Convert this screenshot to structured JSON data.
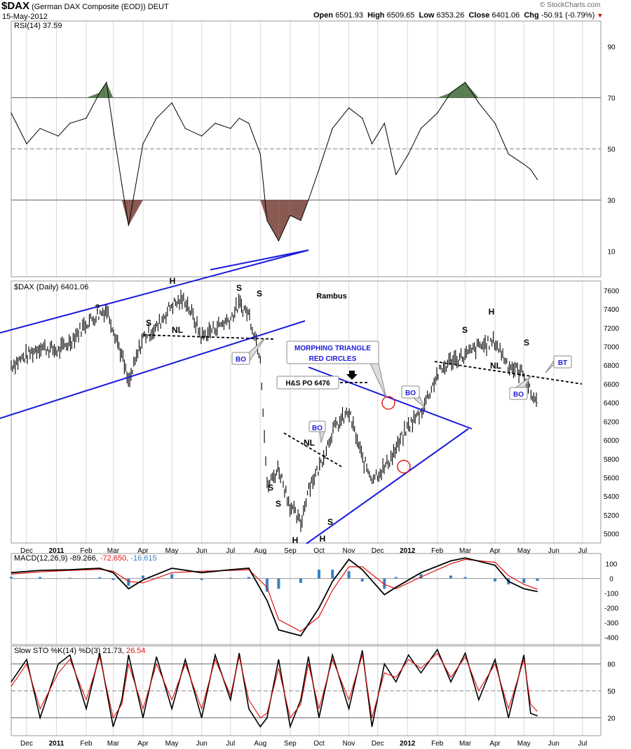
{
  "header": {
    "ticker": "$DAX",
    "name": "(German DAX Composite (EOD))",
    "exchange": "DEUT",
    "date": "15-May-2012",
    "open_label": "Open",
    "open": "6501.93",
    "high_label": "High",
    "high": "6509.65",
    "low_label": "Low",
    "low": "6353.26",
    "close_label": "Close",
    "close": "6401.06",
    "chg_label": "Chg",
    "chg": "-50.91 (-0.79%)",
    "watermark": "© StockCharts.com"
  },
  "colors": {
    "price": "#000000",
    "trendline": "#1a1adc",
    "signal": "#e01010",
    "histogram": "#3a7fc4",
    "overbought_fill": "#5a7d52",
    "oversold_fill": "#8a5a52",
    "circles": "#e02020"
  },
  "chart_data": [
    {
      "type": "line",
      "panel": "rsi",
      "title": "RSI(14) 37.59",
      "ylim": [
        0,
        100
      ],
      "yticks": [
        10,
        30,
        50,
        70,
        90
      ],
      "reference_lines": [
        30,
        50,
        70
      ],
      "x": [
        "2010-11-15",
        "2010-12-01",
        "2010-12-15",
        "2011-01-03",
        "2011-01-15",
        "2011-02-01",
        "2011-02-15",
        "2011-02-22",
        "2011-03-01",
        "2011-03-10",
        "2011-03-17",
        "2011-04-01",
        "2011-04-15",
        "2011-05-01",
        "2011-05-15",
        "2011-06-01",
        "2011-06-15",
        "2011-07-01",
        "2011-07-10",
        "2011-07-20",
        "2011-08-01",
        "2011-08-08",
        "2011-08-20",
        "2011-09-01",
        "2011-09-12",
        "2011-09-20",
        "2011-10-01",
        "2011-10-15",
        "2011-11-01",
        "2011-11-15",
        "2011-11-25",
        "2011-12-08",
        "2011-12-20",
        "2012-01-02",
        "2012-01-15",
        "2012-02-01",
        "2012-02-15",
        "2012-03-01",
        "2012-03-15",
        "2012-04-01",
        "2012-04-15",
        "2012-05-01",
        "2012-05-08",
        "2012-05-15"
      ],
      "values": [
        64,
        52,
        58,
        55,
        60,
        62,
        72,
        76,
        58,
        36,
        20,
        52,
        62,
        68,
        58,
        55,
        60,
        58,
        62,
        60,
        48,
        22,
        14,
        24,
        22,
        30,
        42,
        58,
        66,
        62,
        52,
        60,
        40,
        48,
        58,
        64,
        72,
        76,
        68,
        60,
        48,
        44,
        42,
        38
      ]
    },
    {
      "type": "ohlc",
      "panel": "price",
      "title": "$DAX (Daily) 6401.06",
      "ylim": [
        4900,
        7700
      ],
      "yticks": [
        5000,
        5200,
        5400,
        5600,
        5800,
        6000,
        6200,
        6400,
        6600,
        6800,
        7000,
        7200,
        7400,
        7600
      ],
      "x_ticks": [
        "Dec",
        "2011",
        "Feb",
        "Mar",
        "Apr",
        "May",
        "Jun",
        "Jul",
        "Aug",
        "Sep",
        "Oct",
        "Nov",
        "Dec",
        "2012",
        "Feb",
        "Mar",
        "Apr",
        "May",
        "Jun",
        "Jul"
      ],
      "x": [
        "2010-11-15",
        "2010-12-01",
        "2010-12-15",
        "2011-01-03",
        "2011-01-15",
        "2011-02-01",
        "2011-02-15",
        "2011-02-22",
        "2011-03-01",
        "2011-03-10",
        "2011-03-17",
        "2011-04-01",
        "2011-04-15",
        "2011-05-01",
        "2011-05-15",
        "2011-06-01",
        "2011-06-15",
        "2011-07-01",
        "2011-07-10",
        "2011-07-20",
        "2011-08-01",
        "2011-08-08",
        "2011-08-20",
        "2011-09-01",
        "2011-09-12",
        "2011-09-20",
        "2011-10-01",
        "2011-10-15",
        "2011-11-01",
        "2011-11-15",
        "2011-11-25",
        "2011-12-08",
        "2011-12-20",
        "2012-01-02",
        "2012-01-15",
        "2012-02-01",
        "2012-02-15",
        "2012-03-01",
        "2012-03-15",
        "2012-04-01",
        "2012-04-15",
        "2012-05-01",
        "2012-05-08",
        "2012-05-15"
      ],
      "values": [
        6800,
        6900,
        7000,
        6950,
        7050,
        7250,
        7350,
        7400,
        7200,
        6900,
        6600,
        7100,
        7200,
        7450,
        7500,
        7100,
        7200,
        7300,
        7450,
        7350,
        6900,
        5500,
        5700,
        5300,
        5100,
        5500,
        5700,
        6100,
        6300,
        5800,
        5600,
        5700,
        5900,
        6150,
        6300,
        6700,
        6850,
        6900,
        7000,
        7050,
        6800,
        6700,
        6500,
        6400
      ],
      "labels": [
        {
          "id": "lbl-q",
          "text": "?"
        },
        {
          "id": "lbl-s1",
          "text": "S"
        },
        {
          "id": "lbl-h1",
          "text": "H"
        },
        {
          "id": "lbl-s2",
          "text": "S"
        },
        {
          "id": "lbl-s3",
          "text": "S"
        },
        {
          "id": "lbl-nl1",
          "text": "NL"
        },
        {
          "id": "lbl-rambus",
          "text": "Rambus"
        },
        {
          "id": "lbl-s4",
          "text": "S"
        },
        {
          "id": "lbl-s5",
          "text": "S"
        },
        {
          "id": "lbl-h2",
          "text": "H"
        },
        {
          "id": "lbl-h3",
          "text": "H"
        },
        {
          "id": "lbl-s6",
          "text": "S"
        },
        {
          "id": "lbl-nl2",
          "text": "NL"
        },
        {
          "id": "lbl-s7",
          "text": "S"
        },
        {
          "id": "lbl-h4",
          "text": "H"
        },
        {
          "id": "lbl-s8",
          "text": "S"
        },
        {
          "id": "lbl-nl3",
          "text": "NL"
        }
      ],
      "callouts": {
        "bo": "BO",
        "bt": "BT",
        "hs_po": "H&S PO 6476",
        "triangle_line1": "MORPHING TRIANGLE",
        "triangle_line2": "RED CIRCLES"
      }
    },
    {
      "type": "line",
      "panel": "macd",
      "title": "MACD(12,26,9) -89.266, -72.650, -16.615",
      "title_parts": [
        "MACD(12,26,9) -89.266,",
        "-72.650,",
        "-16.615"
      ],
      "ylim": [
        -450,
        170
      ],
      "yticks": [
        100,
        0,
        -100,
        -200,
        -300,
        -400
      ],
      "x": [
        "2010-11-15",
        "2010-12-15",
        "2011-01-15",
        "2011-02-15",
        "2011-03-01",
        "2011-03-17",
        "2011-04-01",
        "2011-05-01",
        "2011-06-01",
        "2011-07-01",
        "2011-07-20",
        "2011-08-08",
        "2011-08-20",
        "2011-09-12",
        "2011-10-01",
        "2011-10-15",
        "2011-11-01",
        "2011-11-15",
        "2011-12-08",
        "2011-12-20",
        "2012-01-15",
        "2012-02-15",
        "2012-03-01",
        "2012-04-01",
        "2012-04-15",
        "2012-05-01",
        "2012-05-15"
      ],
      "series": [
        {
          "name": "MACD",
          "values": [
            40,
            55,
            60,
            70,
            40,
            -70,
            -10,
            70,
            40,
            60,
            70,
            -150,
            -350,
            -390,
            -200,
            -20,
            130,
            60,
            -110,
            -60,
            40,
            120,
            140,
            90,
            -20,
            -70,
            -89
          ]
        },
        {
          "name": "Signal",
          "values": [
            30,
            45,
            55,
            62,
            50,
            -20,
            -30,
            40,
            50,
            55,
            60,
            -60,
            -280,
            -360,
            -260,
            -80,
            80,
            80,
            -40,
            -70,
            10,
            100,
            130,
            110,
            20,
            -40,
            -73
          ]
        }
      ]
    },
    {
      "type": "line",
      "panel": "stochastic",
      "title": "Slow STO %K(14) %D(3) 21.73, 26.54",
      "title_parts": [
        "Slow STO %K(14) %D(3) 21.73,",
        "26.54"
      ],
      "ylim": [
        0,
        100
      ],
      "yticks": [
        80,
        50,
        20
      ],
      "reference_lines": [
        20,
        50,
        80
      ],
      "x_ticks": [
        "Dec",
        "2011",
        "Feb",
        "Mar",
        "Apr",
        "May",
        "Jun",
        "Jul",
        "Aug",
        "Sep",
        "Oct",
        "Nov",
        "Dec",
        "2012",
        "Feb",
        "Mar",
        "Apr",
        "May",
        "Jun",
        "Jul"
      ],
      "x": [
        "2010-11-15",
        "2010-12-01",
        "2010-12-15",
        "2011-01-03",
        "2011-01-15",
        "2011-02-01",
        "2011-02-15",
        "2011-03-01",
        "2011-03-10",
        "2011-03-17",
        "2011-04-01",
        "2011-04-15",
        "2011-05-01",
        "2011-05-15",
        "2011-06-01",
        "2011-06-15",
        "2011-07-01",
        "2011-07-10",
        "2011-07-20",
        "2011-08-01",
        "2011-08-08",
        "2011-08-20",
        "2011-09-01",
        "2011-09-12",
        "2011-09-20",
        "2011-10-01",
        "2011-10-15",
        "2011-11-01",
        "2011-11-15",
        "2011-11-25",
        "2011-12-08",
        "2011-12-20",
        "2012-01-02",
        "2012-01-15",
        "2012-02-01",
        "2012-02-15",
        "2012-03-01",
        "2012-03-15",
        "2012-04-01",
        "2012-04-15",
        "2012-05-01",
        "2012-05-08",
        "2012-05-15"
      ],
      "series": [
        {
          "name": "%K",
          "values": [
            60,
            85,
            20,
            80,
            90,
            30,
            92,
            10,
            40,
            90,
            20,
            88,
            30,
            85,
            20,
            90,
            40,
            92,
            30,
            10,
            20,
            85,
            10,
            40,
            88,
            20,
            90,
            30,
            95,
            10,
            80,
            60,
            90,
            70,
            96,
            60,
            92,
            40,
            85,
            20,
            90,
            25,
            22
          ]
        },
        {
          "name": "%D",
          "values": [
            55,
            80,
            30,
            70,
            85,
            40,
            88,
            20,
            35,
            80,
            30,
            80,
            40,
            80,
            30,
            85,
            45,
            88,
            40,
            20,
            25,
            75,
            20,
            35,
            80,
            30,
            85,
            40,
            90,
            20,
            70,
            65,
            85,
            75,
            92,
            65,
            88,
            50,
            80,
            30,
            85,
            35,
            27
          ]
        }
      ]
    }
  ]
}
